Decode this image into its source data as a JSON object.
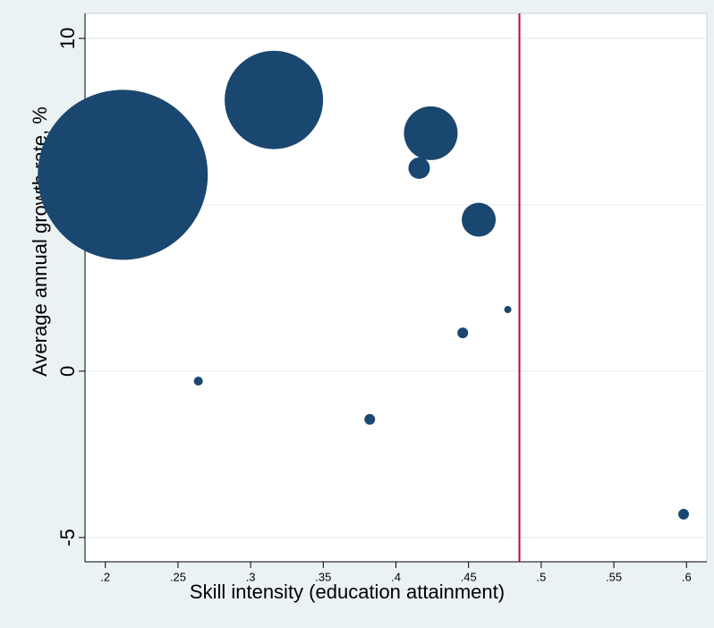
{
  "chart_data": {
    "type": "scatter",
    "x_label": "Skill intensity (education attainment)",
    "y_label": "Average annual growth rate, %",
    "series": [
      {
        "color": "#1a476f",
        "x": [
          0.212,
          0.316,
          0.424,
          0.416,
          0.457,
          0.477,
          0.446,
          0.264,
          0.382,
          0.598
        ],
        "values": [
          5.9,
          8.15,
          7.15,
          6.1,
          4.55,
          1.85,
          1.15,
          -0.3,
          -1.45,
          -4.3
        ],
        "sizes": [
          90.25,
          30.25,
          9,
          1.44,
          3.61,
          0.16,
          0.36,
          0.25,
          0.36,
          0.36
        ]
      }
    ],
    "vline": {
      "value": 0.485,
      "color": "#c10534"
    },
    "xlim": [
      0.186,
      0.614
    ],
    "xticks": [
      {
        "value": 0.2,
        "label": ".2"
      },
      {
        "value": 0.25,
        "label": ".25"
      },
      {
        "value": 0.3,
        "label": ".3"
      },
      {
        "value": 0.35,
        "label": ".35"
      },
      {
        "value": 0.4,
        "label": ".4"
      },
      {
        "value": 0.45,
        "label": ".45"
      },
      {
        "value": 0.5,
        "label": ".5"
      },
      {
        "value": 0.55,
        "label": ".55"
      },
      {
        "value": 0.6,
        "label": ".6"
      }
    ],
    "ylim": [
      -5.73,
      10.75
    ],
    "yticks": [
      -5,
      0,
      5,
      10
    ],
    "grid": true
  }
}
